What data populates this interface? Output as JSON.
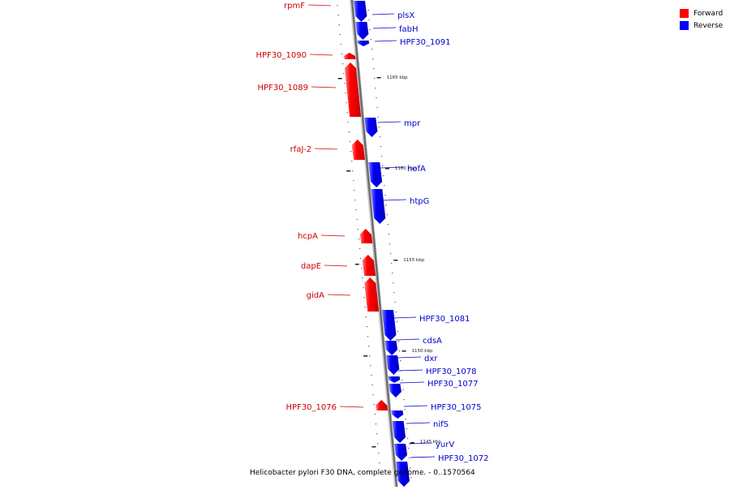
{
  "legend": {
    "forward_label": "Forward",
    "reverse_label": "Reverse",
    "forward_color": "#ff0000",
    "reverse_color": "#0000ff"
  },
  "caption": "Helicobacter pylori F30 DNA, complete genome. - 0..1570564",
  "scale_labels": [
    "1165 kbp",
    "1160 kbp",
    "1155 kbp",
    "1150 kbp",
    "1145 kbp"
  ],
  "genes": [
    {
      "name": "rpmF",
      "strand": "forward"
    },
    {
      "name": "plsX",
      "strand": "reverse"
    },
    {
      "name": "fabH",
      "strand": "reverse"
    },
    {
      "name": "HPF30_1091",
      "strand": "reverse"
    },
    {
      "name": "HPF30_1090",
      "strand": "forward"
    },
    {
      "name": "HPF30_1089",
      "strand": "forward"
    },
    {
      "name": "mpr",
      "strand": "reverse"
    },
    {
      "name": "rfaJ-2",
      "strand": "forward"
    },
    {
      "name": "hofA",
      "strand": "reverse"
    },
    {
      "name": "htpG",
      "strand": "reverse"
    },
    {
      "name": "hcpA",
      "strand": "forward"
    },
    {
      "name": "dapE",
      "strand": "forward"
    },
    {
      "name": "gidA",
      "strand": "forward"
    },
    {
      "name": "HPF30_1081",
      "strand": "reverse"
    },
    {
      "name": "cdsA",
      "strand": "reverse"
    },
    {
      "name": "dxr",
      "strand": "reverse"
    },
    {
      "name": "HPF30_1078",
      "strand": "reverse"
    },
    {
      "name": "HPF30_1077",
      "strand": "reverse"
    },
    {
      "name": "HPF30_1076",
      "strand": "forward"
    },
    {
      "name": "HPF30_1075",
      "strand": "reverse"
    },
    {
      "name": "nifS",
      "strand": "reverse"
    },
    {
      "name": "yurV",
      "strand": "reverse"
    },
    {
      "name": "HPF30_1072",
      "strand": "reverse"
    }
  ]
}
